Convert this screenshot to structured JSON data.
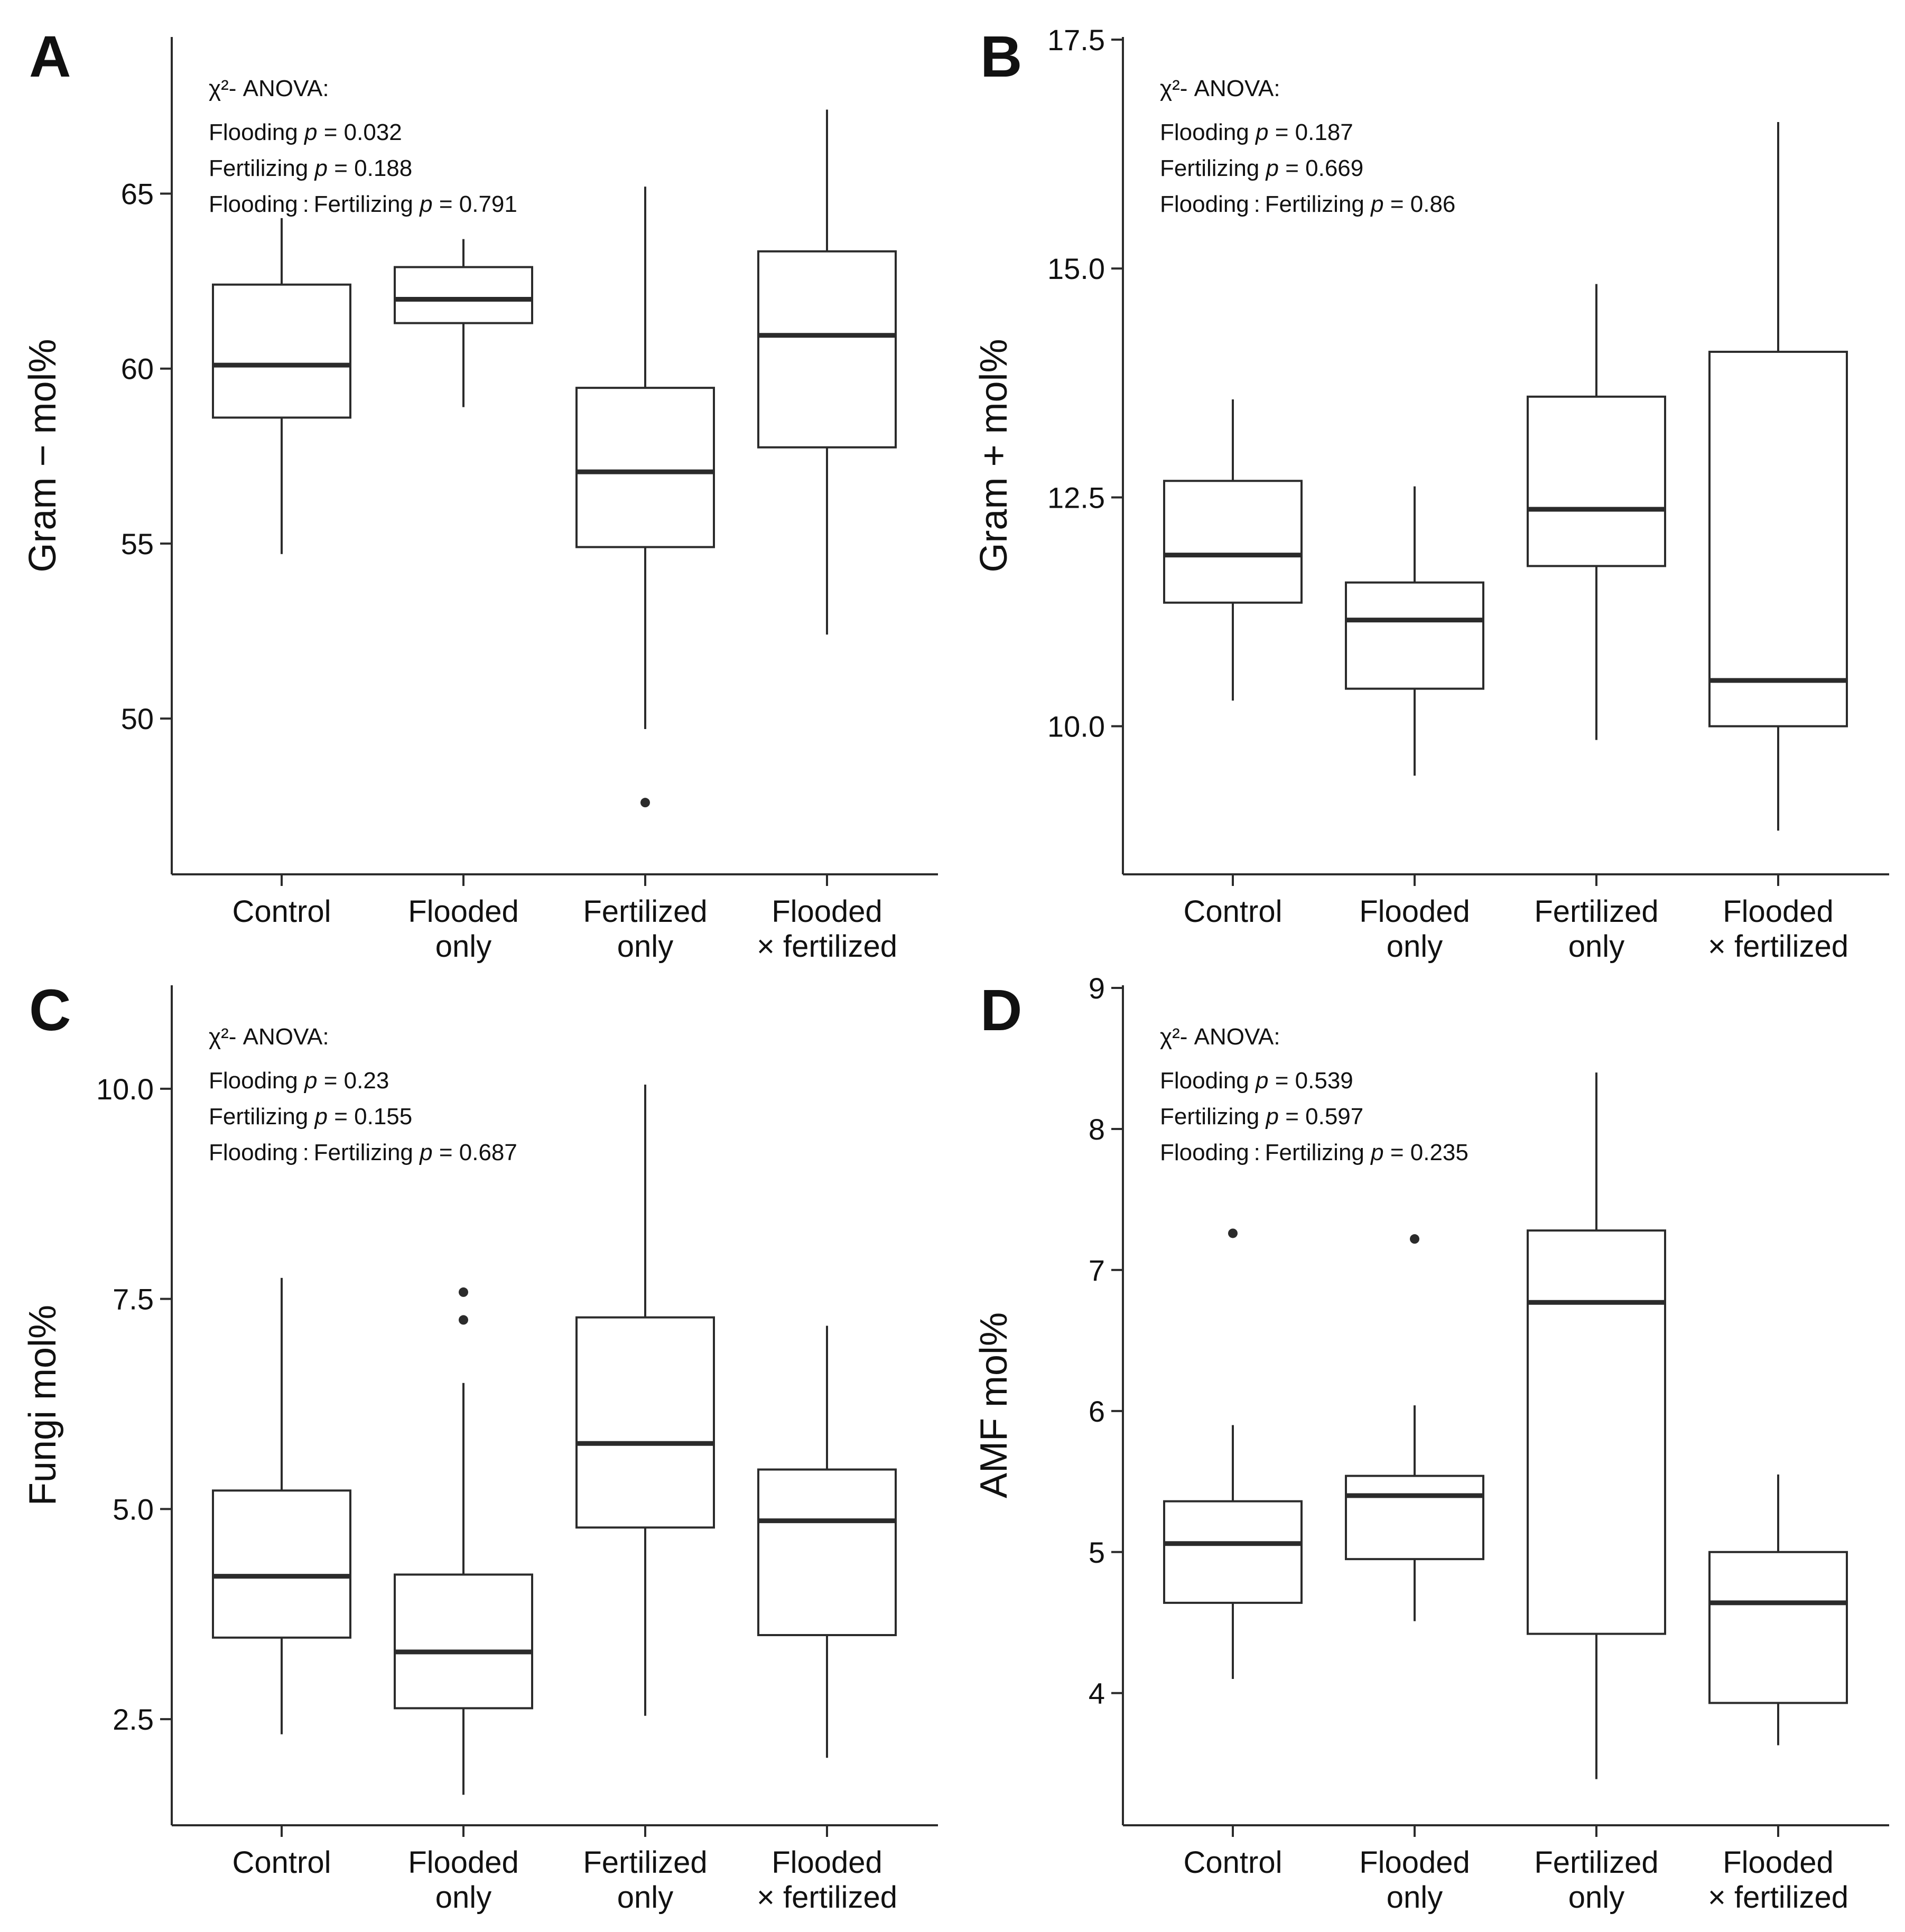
{
  "chart_data": [
    {
      "panel": "A",
      "type": "boxplot",
      "ylabel": "Gram − mol%",
      "ylim": [
        45.7,
        69.4
      ],
      "yticks": [
        50,
        55,
        60,
        65
      ],
      "categories": [
        "Control",
        "Flooded only",
        "Fertilized only",
        "Flooded × fertilized"
      ],
      "series": [
        {
          "category": "Control",
          "whisker_low": 54.7,
          "q1": 58.6,
          "median": 60.1,
          "q3": 62.4,
          "whisker_high": 64.3,
          "outliers": []
        },
        {
          "category": "Flooded only",
          "whisker_low": 58.9,
          "q1": 61.3,
          "median": 61.98,
          "q3": 62.9,
          "whisker_high": 63.7,
          "outliers": []
        },
        {
          "category": "Fertilized only",
          "whisker_low": 49.7,
          "q1": 54.9,
          "median": 57.05,
          "q3": 59.45,
          "whisker_high": 65.2,
          "outliers": [
            47.6
          ]
        },
        {
          "category": "Flooded × fertilized",
          "whisker_low": 52.4,
          "q1": 57.75,
          "median": 60.95,
          "q3": 63.35,
          "whisker_high": 67.4,
          "outliers": []
        }
      ],
      "stats": {
        "heading": "χ²- ANOVA:",
        "tests": [
          {
            "term": "Flooding",
            "p": "0.032"
          },
          {
            "term": "Fertilizing",
            "p": "0.188"
          },
          {
            "term": "Flooding : Fertilizing",
            "p": "0.791"
          }
        ]
      }
    },
    {
      "panel": "B",
      "type": "boxplot",
      "ylabel": "Gram + mol%",
      "ylim": [
        8.44,
        17.5
      ],
      "yticks": [
        10.0,
        12.5,
        15.0,
        17.5
      ],
      "categories": [
        "Control",
        "Flooded only",
        "Fertilized only",
        "Flooded × fertilized"
      ],
      "series": [
        {
          "category": "Control",
          "whisker_low": 10.28,
          "q1": 11.35,
          "median": 11.87,
          "q3": 12.68,
          "whisker_high": 13.57,
          "outliers": []
        },
        {
          "category": "Flooded only",
          "whisker_low": 9.46,
          "q1": 10.41,
          "median": 11.16,
          "q3": 11.57,
          "whisker_high": 12.62,
          "outliers": []
        },
        {
          "category": "Fertilized only",
          "whisker_low": 9.85,
          "q1": 11.75,
          "median": 12.37,
          "q3": 13.6,
          "whisker_high": 14.83,
          "outliers": []
        },
        {
          "category": "Flooded × fertilized",
          "whisker_low": 8.86,
          "q1": 10.0,
          "median": 10.5,
          "q3": 14.09,
          "whisker_high": 16.6,
          "outliers": []
        }
      ],
      "stats": {
        "heading": "χ²- ANOVA:",
        "tests": [
          {
            "term": "Flooding",
            "p": "0.187"
          },
          {
            "term": "Fertilizing",
            "p": "0.669"
          },
          {
            "term": "Flooding : Fertilizing",
            "p": "0.86"
          }
        ]
      }
    },
    {
      "panel": "C",
      "type": "boxplot",
      "ylabel": "Fungi mol%",
      "ylim": [
        1.3,
        11.2
      ],
      "yticks": [
        2.5,
        5.0,
        7.5,
        10.0
      ],
      "categories": [
        "Control",
        "Flooded only",
        "Fertilized only",
        "Flooded × fertilized"
      ],
      "series": [
        {
          "category": "Control",
          "whisker_low": 2.32,
          "q1": 3.47,
          "median": 4.2,
          "q3": 5.22,
          "whisker_high": 7.75,
          "outliers": []
        },
        {
          "category": "Flooded only",
          "whisker_low": 1.6,
          "q1": 2.63,
          "median": 3.3,
          "q3": 4.22,
          "whisker_high": 6.5,
          "outliers": [
            7.25,
            7.58
          ]
        },
        {
          "category": "Fertilized only",
          "whisker_low": 2.54,
          "q1": 4.78,
          "median": 5.78,
          "q3": 7.28,
          "whisker_high": 10.05,
          "outliers": []
        },
        {
          "category": "Flooded × fertilized",
          "whisker_low": 2.04,
          "q1": 3.5,
          "median": 4.86,
          "q3": 5.47,
          "whisker_high": 7.18,
          "outliers": []
        }
      ],
      "stats": {
        "heading": "χ²- ANOVA:",
        "tests": [
          {
            "term": "Flooding",
            "p": "0.23"
          },
          {
            "term": "Fertilizing",
            "p": "0.155"
          },
          {
            "term": "Flooding : Fertilizing",
            "p": "0.687"
          }
        ]
      }
    },
    {
      "panel": "D",
      "type": "boxplot",
      "ylabel": "AMF mol%",
      "ylim": [
        3.1,
        9.0
      ],
      "yticks": [
        4,
        5,
        6,
        7,
        8,
        9
      ],
      "categories": [
        "Control",
        "Flooded only",
        "Fertilized only",
        "Flooded × fertilized"
      ],
      "series": [
        {
          "category": "Control",
          "whisker_low": 4.1,
          "q1": 4.64,
          "median": 5.06,
          "q3": 5.36,
          "whisker_high": 5.9,
          "outliers": [
            7.26
          ]
        },
        {
          "category": "Flooded only",
          "whisker_low": 4.51,
          "q1": 4.95,
          "median": 5.4,
          "q3": 5.54,
          "whisker_high": 6.04,
          "outliers": [
            7.22
          ]
        },
        {
          "category": "Fertilized only",
          "whisker_low": 3.39,
          "q1": 4.42,
          "median": 6.77,
          "q3": 7.28,
          "whisker_high": 8.4,
          "outliers": []
        },
        {
          "category": "Flooded × fertilized",
          "whisker_low": 3.63,
          "q1": 3.93,
          "median": 4.64,
          "q3": 5.0,
          "whisker_high": 5.55,
          "outliers": []
        }
      ],
      "stats": {
        "heading": "χ²- ANOVA:",
        "tests": [
          {
            "term": "Flooding",
            "p": "0.539"
          },
          {
            "term": "Fertilizing",
            "p": "0.597"
          },
          {
            "term": "Flooding : Fertilizing",
            "p": "0.235"
          }
        ]
      }
    }
  ]
}
